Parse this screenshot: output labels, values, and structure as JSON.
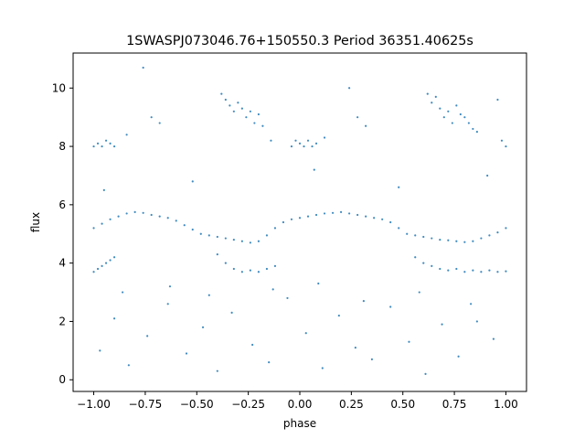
{
  "chart_data": {
    "type": "scatter",
    "title": "1SWASPJ073046.76+150550.3 Period 36351.40625s",
    "xlabel": "phase",
    "ylabel": "flux",
    "xlim": [
      -1.1,
      1.1
    ],
    "ylim": [
      -0.4,
      11.2
    ],
    "xticks": [
      -1.0,
      -0.75,
      -0.5,
      -0.25,
      0.0,
      0.25,
      0.5,
      0.75,
      1.0
    ],
    "xtick_labels": [
      "−1.00",
      "−0.75",
      "−0.50",
      "−0.25",
      "0.00",
      "0.25",
      "0.50",
      "0.75",
      "1.00"
    ],
    "yticks": [
      0,
      2,
      4,
      6,
      8,
      10
    ],
    "ytick_labels": [
      "0",
      "2",
      "4",
      "6",
      "8",
      "10"
    ],
    "grid": false,
    "legend": "none",
    "series_color": "#1f77b4",
    "series": [
      {
        "x": [
          -1.0,
          -0.96,
          -0.92,
          -0.88,
          -0.84,
          -0.8,
          -0.76,
          -0.72,
          -0.68,
          -0.64,
          -0.6,
          -0.56,
          -0.52,
          -0.48,
          -0.44,
          -0.4,
          -0.36,
          -0.32,
          -0.28,
          -0.24,
          -0.2,
          -0.16,
          -0.12,
          -0.08,
          -0.04,
          0.0,
          0.04,
          0.08,
          0.12,
          0.16,
          0.2,
          0.24,
          0.28,
          0.32,
          0.36,
          0.4,
          0.44,
          0.48,
          0.52,
          0.56,
          0.6,
          0.64,
          0.68,
          0.72,
          0.76,
          0.8,
          0.84,
          0.88,
          0.92,
          0.96,
          1.0
        ],
        "y": [
          5.2,
          5.35,
          5.5,
          5.6,
          5.7,
          5.75,
          5.72,
          5.65,
          5.6,
          5.55,
          5.45,
          5.3,
          5.15,
          5.0,
          4.95,
          4.9,
          4.85,
          4.8,
          4.75,
          4.7,
          4.75,
          4.95,
          5.2,
          5.4,
          5.5,
          5.55,
          5.6,
          5.65,
          5.7,
          5.72,
          5.75,
          5.7,
          5.65,
          5.6,
          5.55,
          5.5,
          5.4,
          5.2,
          5.0,
          4.95,
          4.9,
          4.85,
          4.8,
          4.78,
          4.75,
          4.72,
          4.75,
          4.85,
          4.95,
          5.05,
          5.2
        ]
      },
      {
        "x": [
          -1.0,
          -0.98,
          -0.96,
          -0.94,
          -0.92,
          -0.9,
          -0.84,
          -0.76,
          -0.72,
          -0.68,
          -0.38,
          -0.36,
          -0.34,
          -0.32,
          -0.3,
          -0.28,
          -0.26,
          -0.24,
          -0.22,
          -0.2,
          -0.18,
          -0.14,
          -0.04,
          -0.02,
          0.0,
          0.02,
          0.04,
          0.06,
          0.08,
          0.12,
          0.24,
          0.28,
          0.32,
          0.62,
          0.64,
          0.66,
          0.68,
          0.7,
          0.72,
          0.74,
          0.76,
          0.78,
          0.8,
          0.82,
          0.84,
          0.86,
          0.96,
          0.98,
          1.0
        ],
        "y": [
          8.0,
          8.1,
          8.0,
          8.2,
          8.1,
          8.0,
          8.4,
          10.7,
          9.0,
          8.8,
          9.8,
          9.6,
          9.4,
          9.2,
          9.5,
          9.3,
          9.0,
          9.2,
          8.8,
          9.1,
          8.7,
          8.2,
          8.0,
          8.2,
          8.1,
          8.0,
          8.2,
          8.0,
          8.1,
          8.3,
          10.0,
          9.0,
          8.7,
          9.8,
          9.5,
          9.7,
          9.3,
          9.0,
          9.2,
          8.8,
          9.4,
          9.1,
          9.0,
          8.8,
          8.6,
          8.5,
          9.6,
          8.2,
          8.0
        ]
      },
      {
        "x": [
          -1.0,
          -0.98,
          -0.96,
          -0.94,
          -0.92,
          -0.9,
          -0.4,
          -0.36,
          -0.32,
          -0.28,
          -0.24,
          -0.2,
          -0.16,
          -0.12,
          0.56,
          0.6,
          0.64,
          0.68,
          0.72,
          0.76,
          0.8,
          0.84,
          0.88,
          0.92,
          0.96,
          1.0
        ],
        "y": [
          3.7,
          3.8,
          3.9,
          4.0,
          4.1,
          4.2,
          4.3,
          4.0,
          3.8,
          3.7,
          3.75,
          3.7,
          3.8,
          3.9,
          4.2,
          4.0,
          3.9,
          3.8,
          3.75,
          3.8,
          3.7,
          3.75,
          3.7,
          3.75,
          3.7,
          3.72
        ]
      },
      {
        "x": [
          -0.97,
          -0.9,
          -0.83,
          -0.74,
          -0.64,
          -0.55,
          -0.47,
          -0.4,
          -0.33,
          -0.23,
          -0.15,
          -0.06,
          0.03,
          0.11,
          0.19,
          0.27,
          0.35,
          0.44,
          0.53,
          0.61,
          0.69,
          0.77,
          0.86,
          0.94,
          -0.86,
          -0.63,
          -0.44,
          -0.13,
          0.09,
          0.31,
          0.58,
          0.83,
          -0.95,
          -0.52,
          0.07,
          0.48,
          0.91
        ],
        "y": [
          1.0,
          2.1,
          0.5,
          1.5,
          2.6,
          0.9,
          1.8,
          0.3,
          2.3,
          1.2,
          0.6,
          2.8,
          1.6,
          0.4,
          2.2,
          1.1,
          0.7,
          2.5,
          1.3,
          0.2,
          1.9,
          0.8,
          2.0,
          1.4,
          3.0,
          3.2,
          2.9,
          3.1,
          3.3,
          2.7,
          3.0,
          2.6,
          6.5,
          6.8,
          7.2,
          6.6,
          7.0
        ]
      }
    ]
  }
}
